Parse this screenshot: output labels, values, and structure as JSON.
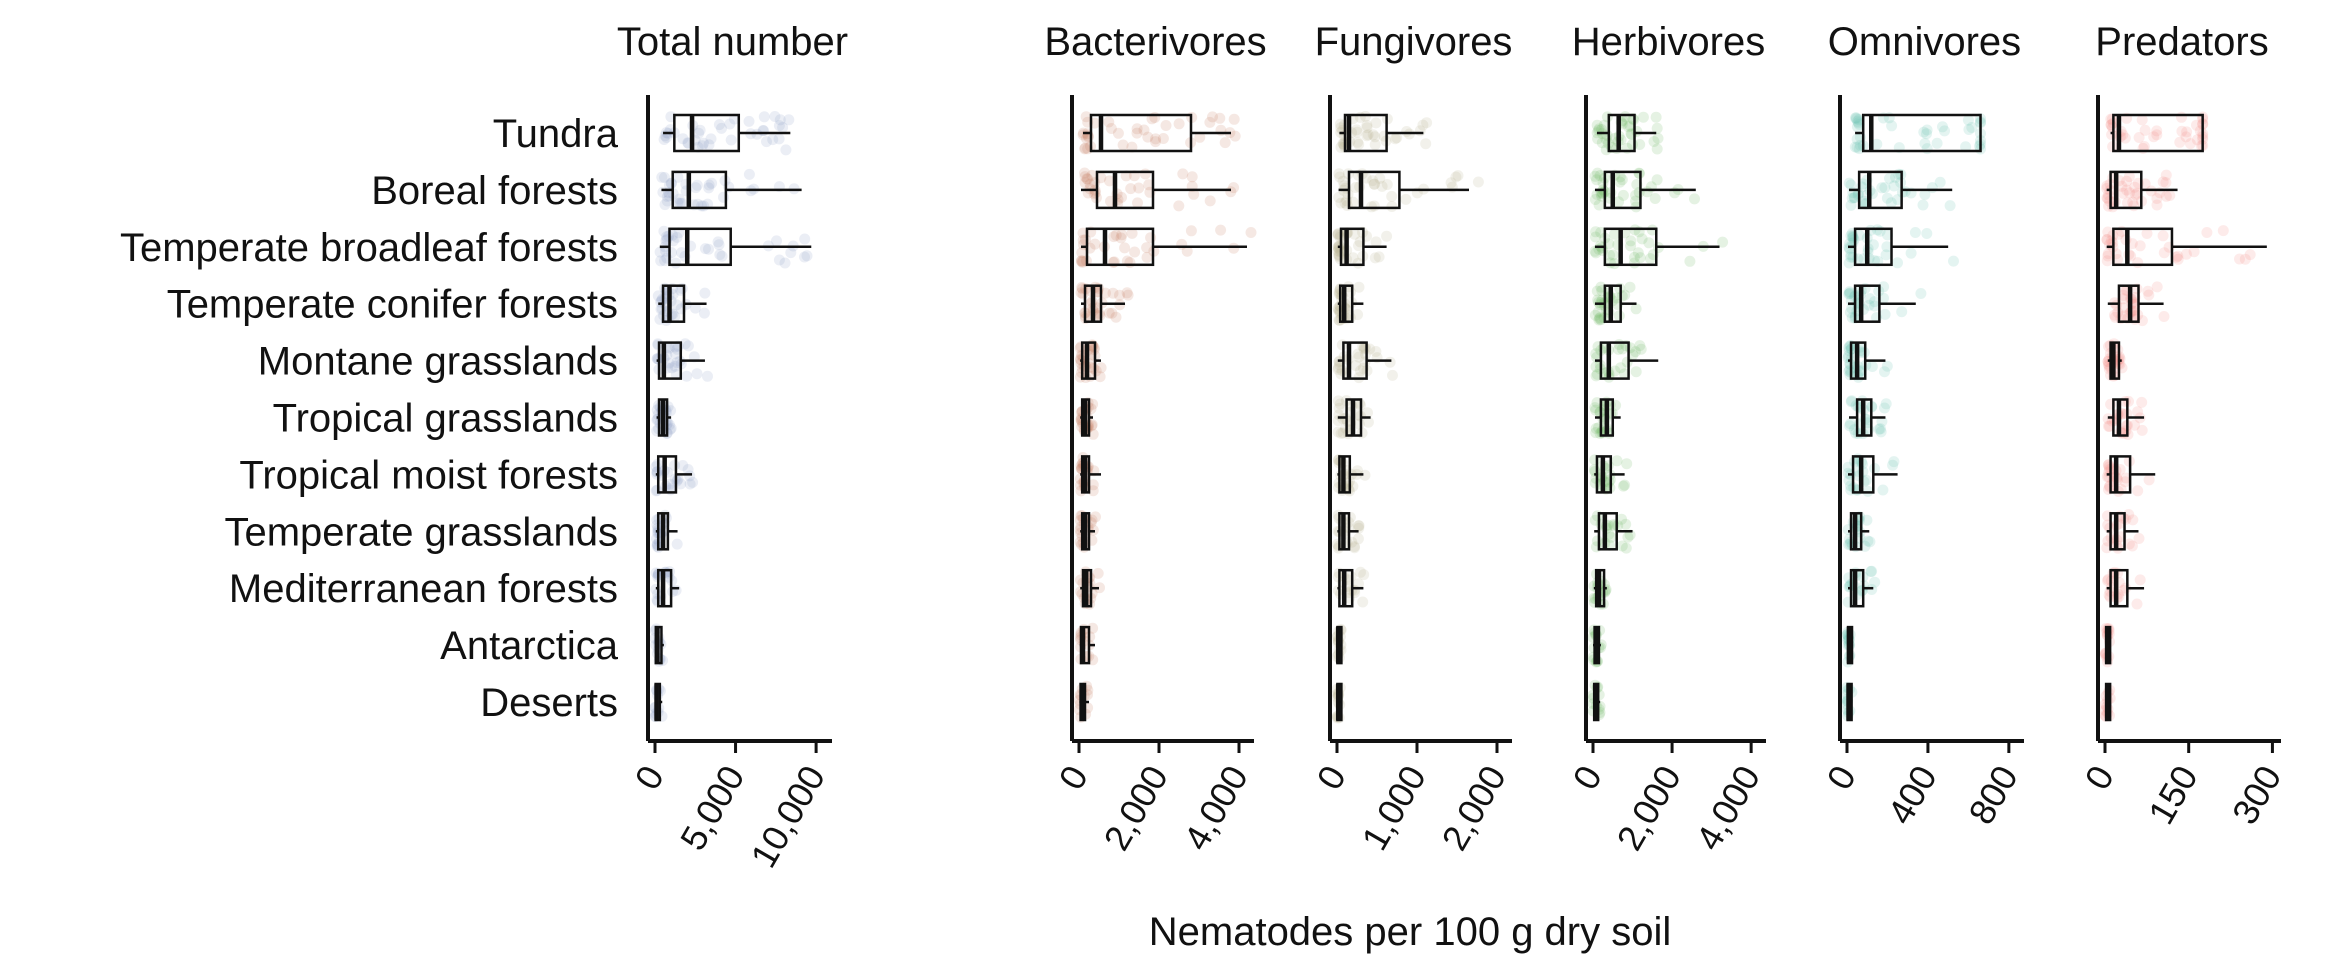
{
  "chart_data": {
    "type": "box",
    "x_axis_title": "Nematodes per 100 g dry soil",
    "categories": [
      "Tundra",
      "Boreal forests",
      "Temperate broadleaf forests",
      "Temperate conifer forests",
      "Montane grasslands",
      "Tropical grasslands",
      "Tropical moist forests",
      "Temperate grasslands",
      "Mediterranean forests",
      "Antarctica",
      "Deserts"
    ],
    "panels": [
      {
        "title": "Total number",
        "color": "#8fa3c8",
        "xlim": [
          0,
          10800
        ],
        "ticks": [
          0,
          5000,
          10000
        ],
        "tick_labels": [
          "0",
          "5,000",
          "10,000"
        ],
        "boxes": [
          {
            "min": 500,
            "q1": 1200,
            "median": 2300,
            "q3": 5200,
            "max": 8400
          },
          {
            "min": 400,
            "q1": 1100,
            "median": 2100,
            "q3": 4400,
            "max": 9100
          },
          {
            "min": 300,
            "q1": 900,
            "median": 2000,
            "q3": 4700,
            "max": 9700
          },
          {
            "min": 200,
            "q1": 500,
            "median": 900,
            "q3": 1800,
            "max": 3200
          },
          {
            "min": 100,
            "q1": 250,
            "median": 550,
            "q3": 1600,
            "max": 3100
          },
          {
            "min": 100,
            "q1": 250,
            "median": 500,
            "q3": 750,
            "max": 1000
          },
          {
            "min": 50,
            "q1": 200,
            "median": 600,
            "q3": 1300,
            "max": 2300
          },
          {
            "min": 50,
            "q1": 200,
            "median": 500,
            "q3": 800,
            "max": 1400
          },
          {
            "min": 50,
            "q1": 200,
            "median": 500,
            "q3": 1000,
            "max": 1500
          },
          {
            "min": 0,
            "q1": 50,
            "median": 150,
            "q3": 400,
            "max": 550
          },
          {
            "min": 0,
            "q1": 40,
            "median": 100,
            "q3": 300,
            "max": 450
          }
        ]
      },
      {
        "title": "Bacterivores",
        "color": "#c98066",
        "xlim": [
          0,
          4300
        ],
        "ticks": [
          0,
          2000,
          4000
        ],
        "tick_labels": [
          "0",
          "2,000",
          "4,000"
        ],
        "boxes": [
          {
            "min": 100,
            "q1": 300,
            "median": 550,
            "q3": 2800,
            "max": 3800
          },
          {
            "min": 50,
            "q1": 450,
            "median": 900,
            "q3": 1850,
            "max": 3800
          },
          {
            "min": 50,
            "q1": 200,
            "median": 650,
            "q3": 1850,
            "max": 4200
          },
          {
            "min": 50,
            "q1": 150,
            "median": 350,
            "q3": 550,
            "max": 1150
          },
          {
            "min": 30,
            "q1": 80,
            "median": 200,
            "q3": 400,
            "max": 550
          },
          {
            "min": 30,
            "q1": 80,
            "median": 150,
            "q3": 250,
            "max": 350
          },
          {
            "min": 30,
            "q1": 80,
            "median": 150,
            "q3": 250,
            "max": 550
          },
          {
            "min": 30,
            "q1": 80,
            "median": 150,
            "q3": 250,
            "max": 400
          },
          {
            "min": 30,
            "q1": 100,
            "median": 180,
            "q3": 300,
            "max": 500
          },
          {
            "min": 20,
            "q1": 50,
            "median": 100,
            "q3": 250,
            "max": 400
          },
          {
            "min": 10,
            "q1": 40,
            "median": 80,
            "q3": 150,
            "max": 250
          }
        ]
      },
      {
        "title": "Fungivores",
        "color": "#b6b08e",
        "xlim": [
          0,
          2150
        ],
        "ticks": [
          0,
          1000,
          2000
        ],
        "tick_labels": [
          "0",
          "1,000",
          "2,000"
        ],
        "boxes": [
          {
            "min": 30,
            "q1": 100,
            "median": 150,
            "q3": 620,
            "max": 1080
          },
          {
            "min": 20,
            "q1": 150,
            "median": 300,
            "q3": 780,
            "max": 1650
          },
          {
            "min": 10,
            "q1": 50,
            "median": 120,
            "q3": 330,
            "max": 620
          },
          {
            "min": 10,
            "q1": 40,
            "median": 90,
            "q3": 190,
            "max": 330
          },
          {
            "min": 10,
            "q1": 80,
            "median": 150,
            "q3": 370,
            "max": 680
          },
          {
            "min": 10,
            "q1": 120,
            "median": 200,
            "q3": 300,
            "max": 420
          },
          {
            "min": 5,
            "q1": 30,
            "median": 80,
            "q3": 160,
            "max": 330
          },
          {
            "min": 5,
            "q1": 30,
            "median": 80,
            "q3": 150,
            "max": 270
          },
          {
            "min": 5,
            "q1": 30,
            "median": 90,
            "q3": 190,
            "max": 330
          },
          {
            "min": 0,
            "q1": 5,
            "median": 15,
            "q3": 30,
            "max": 50
          },
          {
            "min": 0,
            "q1": 5,
            "median": 15,
            "q3": 30,
            "max": 50
          }
        ]
      },
      {
        "title": "Herbivores",
        "color": "#6fb866",
        "xlim": [
          0,
          4300
        ],
        "ticks": [
          0,
          2000,
          4000
        ],
        "tick_labels": [
          "0",
          "2,000",
          "4,000"
        ],
        "boxes": [
          {
            "min": 100,
            "q1": 400,
            "median": 650,
            "q3": 1050,
            "max": 1600
          },
          {
            "min": 50,
            "q1": 300,
            "median": 500,
            "q3": 1200,
            "max": 2600
          },
          {
            "min": 50,
            "q1": 300,
            "median": 700,
            "q3": 1600,
            "max": 3200
          },
          {
            "min": 50,
            "q1": 300,
            "median": 450,
            "q3": 700,
            "max": 1100
          },
          {
            "min": 50,
            "q1": 200,
            "median": 400,
            "q3": 900,
            "max": 1650
          },
          {
            "min": 50,
            "q1": 200,
            "median": 350,
            "q3": 500,
            "max": 700
          },
          {
            "min": 30,
            "q1": 100,
            "median": 250,
            "q3": 450,
            "max": 800
          },
          {
            "min": 30,
            "q1": 150,
            "median": 300,
            "q3": 600,
            "max": 1000
          },
          {
            "min": 20,
            "q1": 80,
            "median": 150,
            "q3": 280,
            "max": 350
          },
          {
            "min": 0,
            "q1": 40,
            "median": 80,
            "q3": 150,
            "max": 200
          },
          {
            "min": 0,
            "q1": 30,
            "median": 60,
            "q3": 120,
            "max": 180
          }
        ]
      },
      {
        "title": "Omnivores",
        "color": "#6cc4b0",
        "xlim": [
          0,
          860
        ],
        "ticks": [
          0,
          400,
          800
        ],
        "tick_labels": [
          "0",
          "400",
          "800"
        ],
        "boxes": [
          {
            "min": 40,
            "q1": 80,
            "median": 120,
            "q3": 660,
            "max": 660
          },
          {
            "min": 10,
            "q1": 60,
            "median": 110,
            "q3": 270,
            "max": 520
          },
          {
            "min": 5,
            "q1": 40,
            "median": 100,
            "q3": 220,
            "max": 500
          },
          {
            "min": 5,
            "q1": 40,
            "median": 70,
            "q3": 160,
            "max": 340
          },
          {
            "min": 5,
            "q1": 20,
            "median": 50,
            "q3": 90,
            "max": 190
          },
          {
            "min": 10,
            "q1": 50,
            "median": 80,
            "q3": 120,
            "max": 190
          },
          {
            "min": 5,
            "q1": 30,
            "median": 70,
            "q3": 130,
            "max": 250
          },
          {
            "min": 5,
            "q1": 20,
            "median": 40,
            "q3": 70,
            "max": 110
          },
          {
            "min": 5,
            "q1": 20,
            "median": 40,
            "q3": 80,
            "max": 130
          },
          {
            "min": 0,
            "q1": 5,
            "median": 10,
            "q3": 20,
            "max": 30
          },
          {
            "min": 0,
            "q1": 3,
            "median": 8,
            "q3": 15,
            "max": 25
          }
        ]
      },
      {
        "title": "Predators",
        "color": "#f3908a",
        "xlim": [
          0,
          310
        ],
        "ticks": [
          0,
          150,
          300
        ],
        "tick_labels": [
          "0",
          "150",
          "300"
        ],
        "boxes": [
          {
            "min": 10,
            "q1": 15,
            "median": 25,
            "q3": 175,
            "max": 175
          },
          {
            "min": 3,
            "q1": 10,
            "median": 20,
            "q3": 65,
            "max": 130
          },
          {
            "min": 3,
            "q1": 15,
            "median": 40,
            "q3": 120,
            "max": 290
          },
          {
            "min": 5,
            "q1": 25,
            "median": 45,
            "q3": 60,
            "max": 105
          },
          {
            "min": 5,
            "q1": 10,
            "median": 15,
            "q3": 25,
            "max": 30
          },
          {
            "min": 5,
            "q1": 15,
            "median": 25,
            "q3": 40,
            "max": 70
          },
          {
            "min": 3,
            "q1": 10,
            "median": 20,
            "q3": 45,
            "max": 90
          },
          {
            "min": 3,
            "q1": 10,
            "median": 20,
            "q3": 35,
            "max": 60
          },
          {
            "min": 3,
            "q1": 10,
            "median": 20,
            "q3": 40,
            "max": 70
          },
          {
            "min": 0,
            "q1": 2,
            "median": 4,
            "q3": 6,
            "max": 8
          },
          {
            "min": 0,
            "q1": 2,
            "median": 4,
            "q3": 8,
            "max": 10
          }
        ]
      }
    ]
  }
}
